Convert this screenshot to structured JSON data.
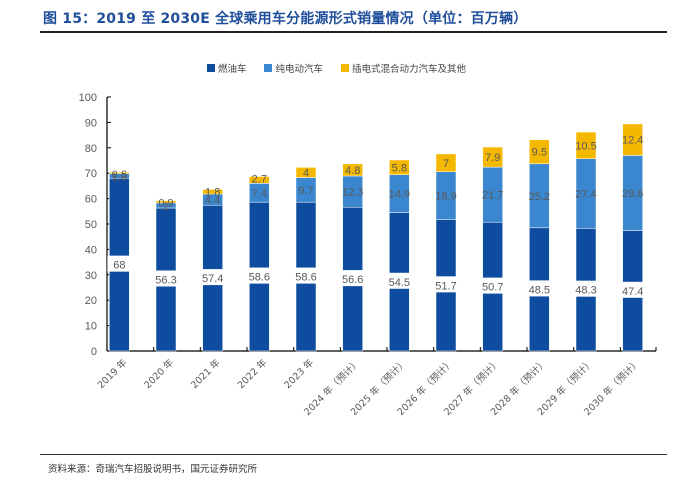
{
  "title": "图 15：2019 至 2030E 全球乘用车分能源形式销量情况（单位：百万辆）",
  "source": "资料来源：奇瑞汽车招股说明书，国元证券研究所",
  "colors": {
    "title": "#1f4e9b",
    "ice": "#0d4c9e",
    "bev": "#3a87cf",
    "phev": "#f5b800"
  },
  "chart_data": {
    "type": "bar",
    "stacked": true,
    "title": "2019 至 2030E 全球乘用车分能源形式销量情况（单位：百万辆）",
    "xlabel": "",
    "ylabel": "",
    "ylim": [
      0,
      100
    ],
    "yticks": [
      0,
      10,
      20,
      30,
      40,
      50,
      60,
      70,
      80,
      90,
      100
    ],
    "grid": false,
    "legend_position": "top-center",
    "categories": [
      "2019 年",
      "2020 年",
      "2021 年",
      "2022 年",
      "2023 年",
      "2024 年（预计）",
      "2025 年（预计）",
      "2026 年（预计）",
      "2027 年（预计）",
      "2028 年（预计）",
      "2029 年（预计）",
      "2030 年（预计）"
    ],
    "series": [
      {
        "name": "燃油车",
        "color": "#0d4c9e",
        "values": [
          68,
          56.3,
          57.4,
          58.6,
          58.6,
          56.6,
          54.5,
          51.7,
          50.7,
          48.5,
          48.3,
          47.4
        ]
      },
      {
        "name": "纯电动汽车",
        "color": "#3a87cf",
        "values": [
          1.8,
          2,
          4.4,
          7.4,
          9.7,
          12.3,
          14.9,
          18.9,
          21.7,
          25.2,
          27.4,
          29.6
        ]
      },
      {
        "name": "插电式混合动力汽车及其他",
        "color": "#f5b800",
        "values": [
          0.6,
          0.9,
          1.8,
          2.7,
          4,
          4.8,
          5.8,
          7,
          7.9,
          9.5,
          10.5,
          12.4
        ]
      }
    ]
  }
}
